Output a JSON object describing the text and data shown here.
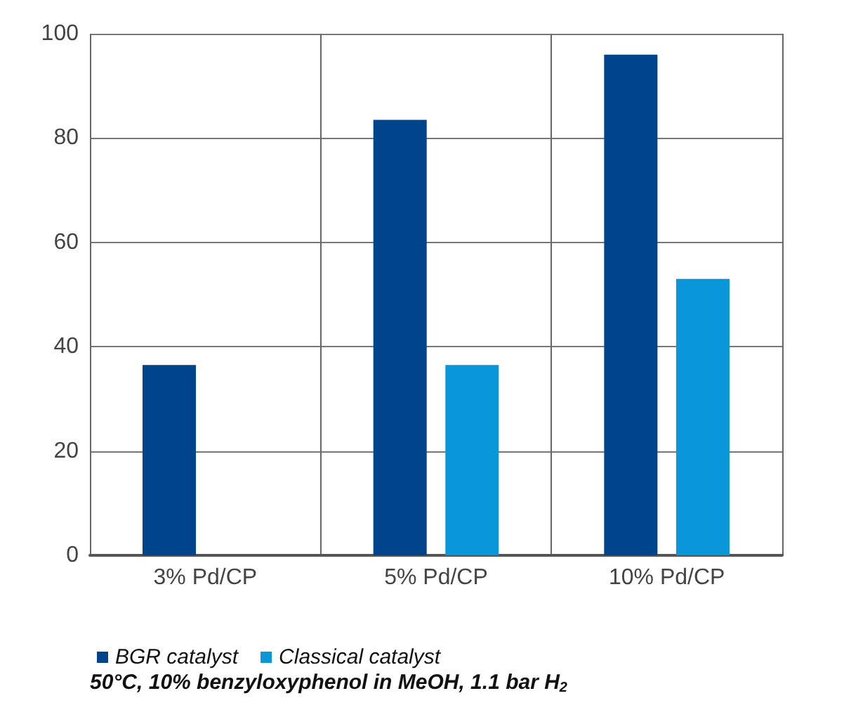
{
  "chart_data": {
    "type": "bar",
    "categories": [
      "3% Pd/CP",
      "5% Pd/CP",
      "10% Pd/CP"
    ],
    "series": [
      {
        "name": "BGR catalyst",
        "color": "#00458c",
        "values": [
          36.5,
          83.5,
          96
        ]
      },
      {
        "name": "Classical catalyst",
        "color": "#0a97d9",
        "values": [
          null,
          36.5,
          53
        ]
      }
    ],
    "ylim": [
      0,
      100
    ],
    "yticks": [
      0,
      20,
      40,
      60,
      80,
      100
    ],
    "grid": true,
    "legend": "bottom left",
    "annotations": [
      "50°C, 10% benzyloxyphenol in MeOH, 1.1 bar H$_{2}$"
    ]
  }
}
